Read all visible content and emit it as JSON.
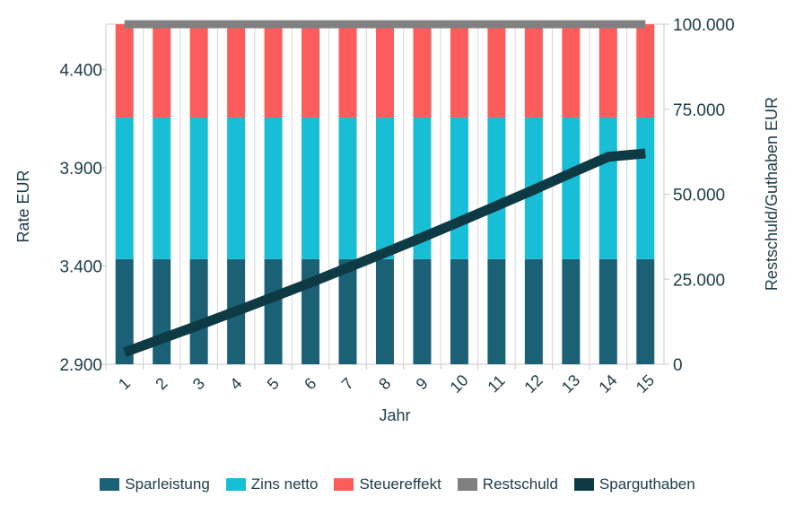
{
  "chart_data": {
    "type": "bar",
    "categories": [
      "1",
      "2",
      "3",
      "4",
      "5",
      "6",
      "7",
      "8",
      "9",
      "10",
      "11",
      "12",
      "13",
      "14",
      "15"
    ],
    "xlabel": "Jahr",
    "ylabel_left": "Rate EUR",
    "ylabel_right": "Restschuld/Guthaben EUR",
    "ylim_left": [
      2900,
      4630
    ],
    "ylim_right": [
      0,
      100000
    ],
    "yticks_left": [
      "2.900",
      "3.400",
      "3.900",
      "4.400"
    ],
    "yticks_left_values": [
      2900,
      3400,
      3900,
      4400
    ],
    "yticks_right": [
      "0",
      "25.000",
      "50.000",
      "75.000",
      "100.000"
    ],
    "yticks_right_values": [
      0,
      25000,
      50000,
      75000,
      100000
    ],
    "stacked_series": [
      {
        "name": "Sparleistung",
        "color": "#1b6175",
        "values": [
          3435,
          3435,
          3435,
          3435,
          3435,
          3435,
          3435,
          3435,
          3435,
          3435,
          3435,
          3435,
          3435,
          3435,
          3435
        ]
      },
      {
        "name": "Zins netto",
        "color": "#17bed6",
        "values": [
          720,
          720,
          720,
          720,
          720,
          720,
          720,
          720,
          720,
          720,
          720,
          720,
          720,
          720,
          720
        ]
      },
      {
        "name": "Steuereffekt",
        "color": "#fd5c5c",
        "values": [
          475,
          475,
          475,
          475,
          475,
          475,
          475,
          475,
          475,
          475,
          475,
          475,
          475,
          475,
          475
        ]
      }
    ],
    "line_series": [
      {
        "name": "Restschuld",
        "color": "#808080",
        "axis": "right",
        "values": [
          100000,
          100000,
          100000,
          100000,
          100000,
          100000,
          100000,
          100000,
          100000,
          100000,
          100000,
          100000,
          100000,
          100000,
          100000
        ]
      },
      {
        "name": "Sparguthaben",
        "color": "#0e3a45",
        "axis": "right",
        "values": [
          3500,
          7500,
          11500,
          15600,
          19800,
          24000,
          28400,
          32800,
          37300,
          41900,
          46600,
          51300,
          56200,
          61000,
          62000
        ]
      }
    ],
    "legend": [
      "Sparleistung",
      "Zins netto",
      "Steuereffekt",
      "Restschuld",
      "Sparguthaben"
    ],
    "legend_position": "bottom",
    "grid": false
  }
}
